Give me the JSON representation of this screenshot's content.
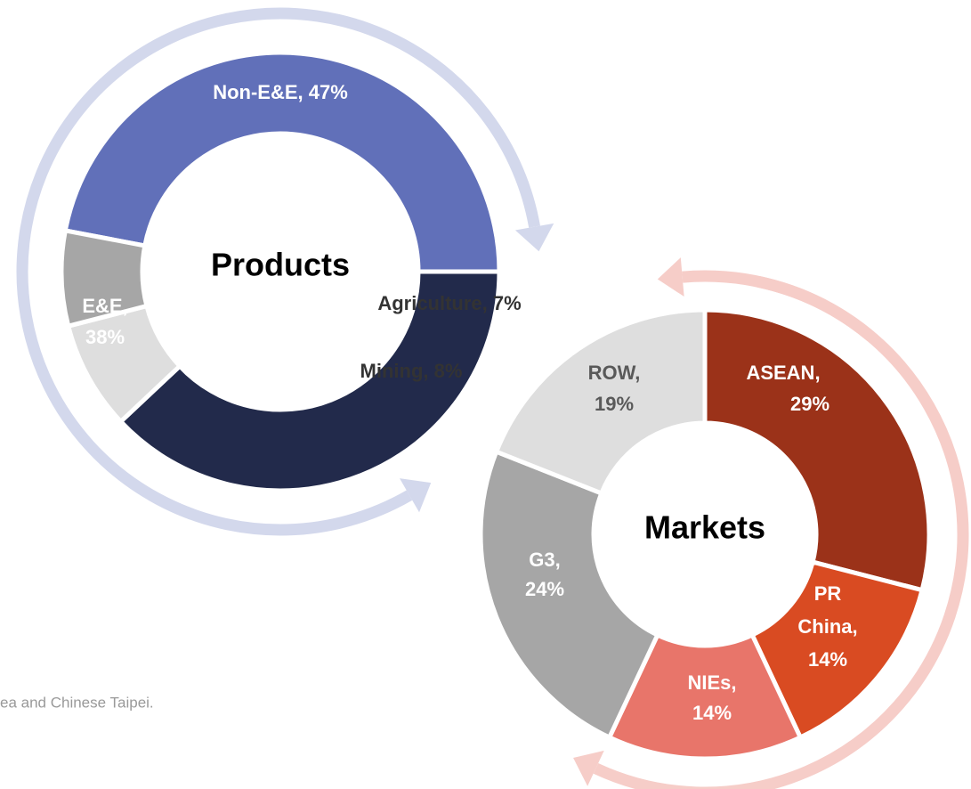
{
  "chart_data": [
    {
      "type": "donut",
      "center_label": "Products",
      "values": [
        47,
        38,
        8,
        7
      ],
      "value_labels": [
        [
          "Non-E&E, 47%"
        ],
        [
          "E&E,",
          "38%"
        ],
        [
          "Mining, 8%"
        ],
        [
          "Agriculture, 7%"
        ]
      ],
      "colors": [
        "#6170b9",
        "#222a4b",
        "#dedede",
        "#a6a6a6"
      ]
    },
    {
      "type": "donut",
      "center_label": "Markets",
      "values": [
        29,
        14,
        14,
        24,
        19
      ],
      "value_labels": [
        [
          "ASEAN,",
          "29%"
        ],
        [
          "PR",
          "China,",
          "14%"
        ],
        [
          "NIEs,",
          "14%"
        ],
        [
          "G3,",
          "24%"
        ],
        [
          "ROW,",
          "19%"
        ]
      ],
      "colors": [
        "#9b3219",
        "#d94b22",
        "#e8756a",
        "#a6a6a6",
        "#dedede"
      ]
    }
  ],
  "note": "ea and Chinese Taipei."
}
